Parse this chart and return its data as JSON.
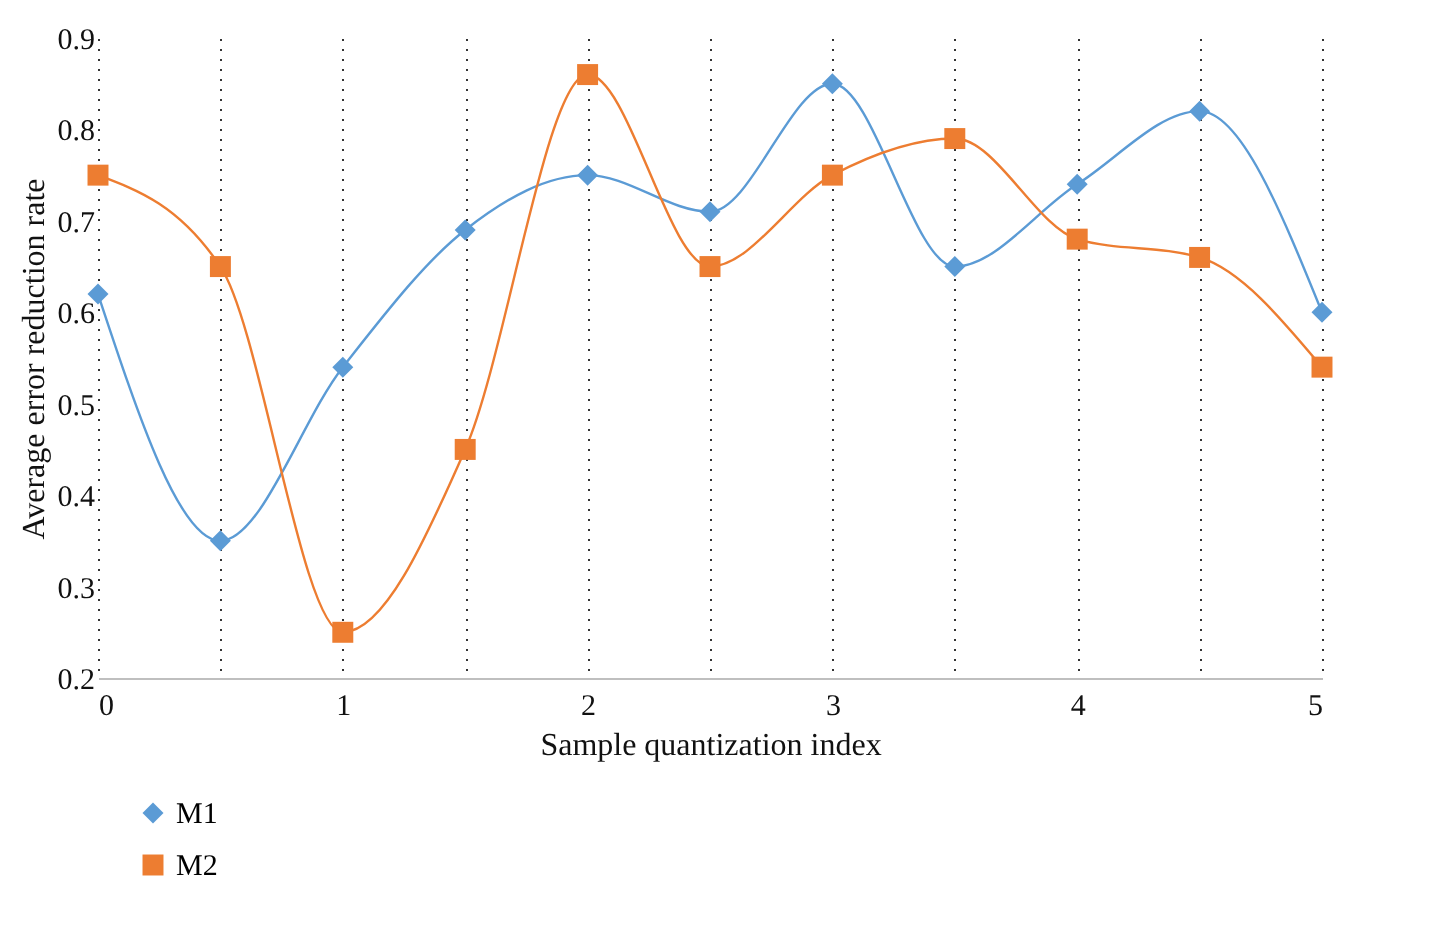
{
  "chart_data": {
    "type": "line",
    "xlabel": "Sample quantization index",
    "ylabel": "Average error reduction rate",
    "x": [
      0,
      0.5,
      1,
      1.5,
      2,
      2.5,
      3,
      3.5,
      4,
      4.5,
      5
    ],
    "series": [
      {
        "name": "M1",
        "color": "#5b9bd5",
        "marker": "diamond",
        "values": [
          0.62,
          0.35,
          0.54,
          0.69,
          0.75,
          0.71,
          0.85,
          0.65,
          0.74,
          0.82,
          0.6
        ]
      },
      {
        "name": "M2",
        "color": "#ed7d31",
        "marker": "square",
        "values": [
          0.75,
          0.65,
          0.25,
          0.45,
          0.86,
          0.65,
          0.75,
          0.79,
          0.68,
          0.66,
          0.54
        ]
      }
    ],
    "xlim": [
      0,
      5
    ],
    "xticks": [
      0,
      {
        "value": 0.5,
        "label": null
      },
      1,
      {
        "value": 1.5,
        "label": null
      },
      2,
      {
        "value": 2.5,
        "label": null
      },
      3,
      {
        "value": 3.5,
        "label": null
      },
      4,
      {
        "value": 4.5,
        "label": null
      },
      5
    ],
    "ylim": [
      0.2,
      0.9
    ],
    "yticks": [
      0.2,
      0.3,
      0.4,
      0.5,
      0.6,
      0.7,
      0.8,
      0.9
    ],
    "grid": "x",
    "legend": "bottom left",
    "line_style": "solid"
  }
}
